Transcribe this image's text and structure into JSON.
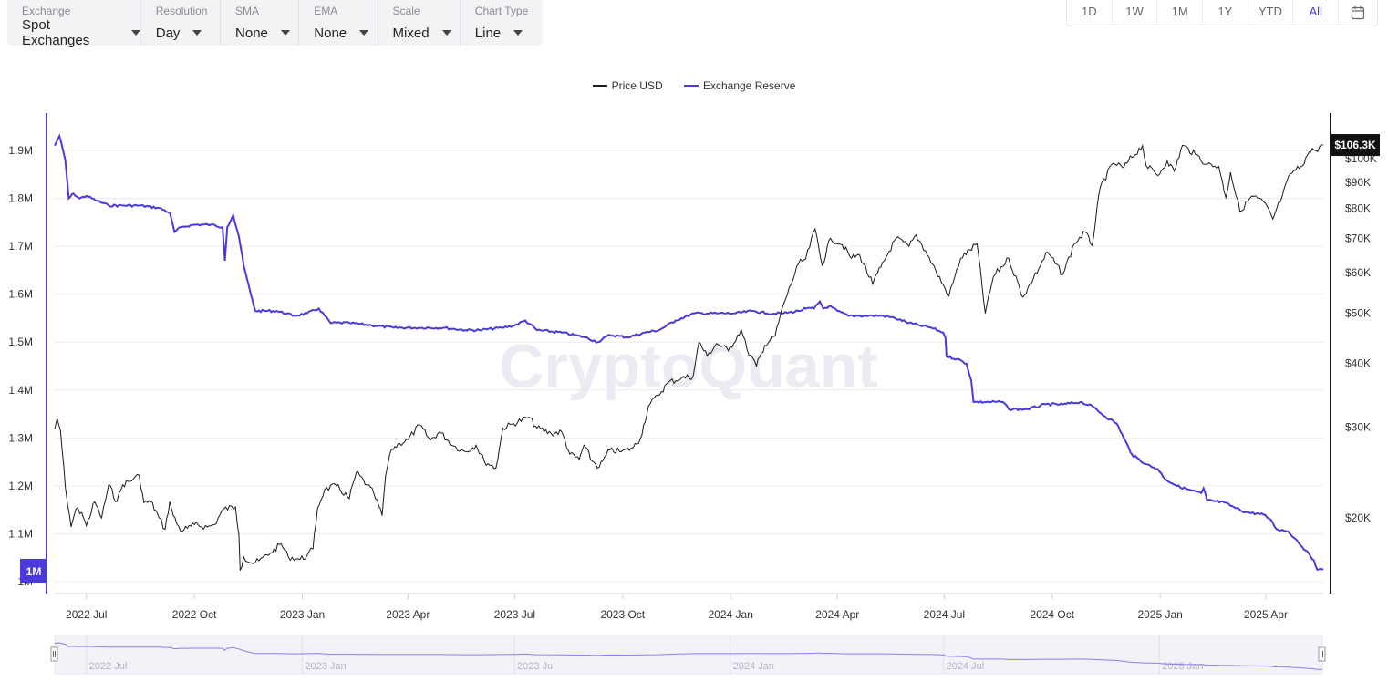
{
  "controls": [
    {
      "label": "Exchange",
      "value": "Spot Exchanges"
    },
    {
      "label": "Resolution",
      "value": "Day"
    },
    {
      "label": "SMA",
      "value": "None"
    },
    {
      "label": "EMA",
      "value": "None"
    },
    {
      "label": "Scale",
      "value": "Mixed"
    },
    {
      "label": "Chart Type",
      "value": "Line"
    }
  ],
  "range_buttons": [
    "1D",
    "1W",
    "1M",
    "1Y",
    "YTD",
    "All"
  ],
  "active_range": "All",
  "watermark": "CryptoQuant",
  "colors": {
    "reserve": "#4a3ad9",
    "price": "#1a1a1a",
    "accent": "#4a3ad9",
    "price_tag_bg": "#111111"
  },
  "chart_data": {
    "type": "line",
    "legend": [
      "Price USD",
      "Exchange Reserve"
    ],
    "legend_position": "top-center",
    "x_ticks": [
      "2022 Jul",
      "2022 Oct",
      "2023 Jan",
      "2023 Apr",
      "2023 Jul",
      "2023 Oct",
      "2024 Jan",
      "2024 Apr",
      "2024 Jul",
      "2024 Oct",
      "2025 Jan",
      "2025 Apr"
    ],
    "x_range": [
      "2022-06-04",
      "2025-05-20"
    ],
    "left_axis": {
      "ticks": [
        1.0,
        1.1,
        1.2,
        1.3,
        1.4,
        1.5,
        1.6,
        1.7,
        1.8,
        1.9
      ],
      "tick_labels": [
        "1M",
        "1.1M",
        "1.2M",
        "1.3M",
        "1.4M",
        "1.5M",
        "1.6M",
        "1.7M",
        "1.8M",
        "1.9M"
      ],
      "range": [
        0.998,
        1.9
      ],
      "unit": "M",
      "current_label": "1M"
    },
    "right_axis": {
      "scale": "log",
      "ticks": [
        20,
        30,
        40,
        50,
        60,
        70,
        80,
        90,
        100
      ],
      "tick_labels": [
        "$20K",
        "$30K",
        "$40K",
        "$50K",
        "$60K",
        "$70K",
        "$80K",
        "$90K",
        "$100K"
      ],
      "range": [
        16,
        110
      ],
      "current_label": "$106.3K"
    },
    "grid": true,
    "series": [
      {
        "name": "Exchange Reserve",
        "axis": "left",
        "points": [
          [
            "2022-06-04",
            1.91
          ],
          [
            "2022-06-08",
            1.93
          ],
          [
            "2022-06-13",
            1.88
          ],
          [
            "2022-06-16",
            1.8
          ],
          [
            "2022-06-20",
            1.81
          ],
          [
            "2022-06-25",
            1.8
          ],
          [
            "2022-07-01",
            1.805
          ],
          [
            "2022-07-10",
            1.795
          ],
          [
            "2022-07-20",
            1.785
          ],
          [
            "2022-08-01",
            1.785
          ],
          [
            "2022-08-15",
            1.785
          ],
          [
            "2022-09-01",
            1.78
          ],
          [
            "2022-09-10",
            1.77
          ],
          [
            "2022-09-14",
            1.73
          ],
          [
            "2022-09-20",
            1.74
          ],
          [
            "2022-10-01",
            1.745
          ],
          [
            "2022-10-15",
            1.745
          ],
          [
            "2022-10-25",
            1.74
          ],
          [
            "2022-10-27",
            1.67
          ],
          [
            "2022-10-29",
            1.74
          ],
          [
            "2022-11-03",
            1.765
          ],
          [
            "2022-11-08",
            1.72
          ],
          [
            "2022-11-12",
            1.66
          ],
          [
            "2022-11-18",
            1.6
          ],
          [
            "2022-11-22",
            1.565
          ],
          [
            "2022-12-10",
            1.565
          ],
          [
            "2022-12-25",
            1.555
          ],
          [
            "2023-01-05",
            1.56
          ],
          [
            "2023-01-15",
            1.57
          ],
          [
            "2023-01-25",
            1.54
          ],
          [
            "2023-02-10",
            1.54
          ],
          [
            "2023-03-01",
            1.535
          ],
          [
            "2023-03-20",
            1.53
          ],
          [
            "2023-04-10",
            1.53
          ],
          [
            "2023-05-01",
            1.53
          ],
          [
            "2023-05-20",
            1.525
          ],
          [
            "2023-06-01",
            1.525
          ],
          [
            "2023-06-20",
            1.53
          ],
          [
            "2023-07-01",
            1.535
          ],
          [
            "2023-07-10",
            1.545
          ],
          [
            "2023-07-20",
            1.525
          ],
          [
            "2023-08-10",
            1.52
          ],
          [
            "2023-08-30",
            1.51
          ],
          [
            "2023-09-10",
            1.5
          ],
          [
            "2023-09-20",
            1.515
          ],
          [
            "2023-10-05",
            1.51
          ],
          [
            "2023-10-20",
            1.52
          ],
          [
            "2023-11-01",
            1.525
          ],
          [
            "2023-11-15",
            1.545
          ],
          [
            "2023-12-01",
            1.56
          ],
          [
            "2023-12-20",
            1.56
          ],
          [
            "2024-01-05",
            1.56
          ],
          [
            "2024-01-20",
            1.565
          ],
          [
            "2024-02-01",
            1.56
          ],
          [
            "2024-02-15",
            1.56
          ],
          [
            "2024-02-28",
            1.565
          ],
          [
            "2024-03-05",
            1.57
          ],
          [
            "2024-03-12",
            1.57
          ],
          [
            "2024-03-17",
            1.585
          ],
          [
            "2024-03-20",
            1.57
          ],
          [
            "2024-03-25",
            1.575
          ],
          [
            "2024-04-01",
            1.565
          ],
          [
            "2024-04-10",
            1.555
          ],
          [
            "2024-04-20",
            1.555
          ],
          [
            "2024-05-01",
            1.555
          ],
          [
            "2024-05-10",
            1.555
          ],
          [
            "2024-05-20",
            1.55
          ],
          [
            "2024-06-01",
            1.54
          ],
          [
            "2024-06-10",
            1.535
          ],
          [
            "2024-06-20",
            1.53
          ],
          [
            "2024-06-30",
            1.52
          ],
          [
            "2024-07-02",
            1.51
          ],
          [
            "2024-07-03",
            1.47
          ],
          [
            "2024-07-12",
            1.465
          ],
          [
            "2024-07-20",
            1.455
          ],
          [
            "2024-07-24",
            1.42
          ],
          [
            "2024-07-26",
            1.375
          ],
          [
            "2024-08-10",
            1.375
          ],
          [
            "2024-08-20",
            1.375
          ],
          [
            "2024-08-25",
            1.36
          ],
          [
            "2024-09-10",
            1.36
          ],
          [
            "2024-09-25",
            1.37
          ],
          [
            "2024-10-10",
            1.37
          ],
          [
            "2024-10-25",
            1.375
          ],
          [
            "2024-11-05",
            1.365
          ],
          [
            "2024-11-15",
            1.345
          ],
          [
            "2024-11-25",
            1.33
          ],
          [
            "2024-12-01",
            1.3
          ],
          [
            "2024-12-08",
            1.265
          ],
          [
            "2024-12-20",
            1.245
          ],
          [
            "2024-12-30",
            1.235
          ],
          [
            "2025-01-05",
            1.215
          ],
          [
            "2025-01-15",
            1.2
          ],
          [
            "2025-01-28",
            1.19
          ],
          [
            "2025-02-05",
            1.185
          ],
          [
            "2025-02-07",
            1.195
          ],
          [
            "2025-02-10",
            1.17
          ],
          [
            "2025-02-25",
            1.165
          ],
          [
            "2025-03-05",
            1.155
          ],
          [
            "2025-03-15",
            1.145
          ],
          [
            "2025-03-30",
            1.14
          ],
          [
            "2025-04-05",
            1.13
          ],
          [
            "2025-04-10",
            1.11
          ],
          [
            "2025-04-20",
            1.105
          ],
          [
            "2025-04-28",
            1.085
          ],
          [
            "2025-05-05",
            1.065
          ],
          [
            "2025-05-12",
            1.045
          ],
          [
            "2025-05-15",
            1.025
          ],
          [
            "2025-05-20",
            1.025
          ]
        ]
      },
      {
        "name": "Price USD",
        "axis": "right",
        "points": [
          [
            "2022-06-04",
            29.8
          ],
          [
            "2022-06-06",
            31.2
          ],
          [
            "2022-06-09",
            29.5
          ],
          [
            "2022-06-13",
            23.0
          ],
          [
            "2022-06-15",
            21.2
          ],
          [
            "2022-06-18",
            19.2
          ],
          [
            "2022-06-22",
            20.8
          ],
          [
            "2022-06-27",
            20.5
          ],
          [
            "2022-07-01",
            19.3
          ],
          [
            "2022-07-08",
            21.5
          ],
          [
            "2022-07-14",
            20.0
          ],
          [
            "2022-07-20",
            23.2
          ],
          [
            "2022-07-27",
            21.5
          ],
          [
            "2022-08-01",
            23.2
          ],
          [
            "2022-08-10",
            23.8
          ],
          [
            "2022-08-15",
            24.2
          ],
          [
            "2022-08-19",
            21.4
          ],
          [
            "2022-08-25",
            21.5
          ],
          [
            "2022-09-01",
            20.0
          ],
          [
            "2022-09-06",
            19.0
          ],
          [
            "2022-09-10",
            21.5
          ],
          [
            "2022-09-13",
            20.2
          ],
          [
            "2022-09-19",
            18.9
          ],
          [
            "2022-09-25",
            19.1
          ],
          [
            "2022-10-01",
            19.4
          ],
          [
            "2022-10-12",
            19.2
          ],
          [
            "2022-10-18",
            19.4
          ],
          [
            "2022-10-26",
            20.8
          ],
          [
            "2022-11-05",
            21.0
          ],
          [
            "2022-11-08",
            18.5
          ],
          [
            "2022-11-09",
            15.8
          ],
          [
            "2022-11-12",
            16.8
          ],
          [
            "2022-11-20",
            16.3
          ],
          [
            "2022-11-25",
            16.5
          ],
          [
            "2022-12-05",
            17.1
          ],
          [
            "2022-12-14",
            17.8
          ],
          [
            "2022-12-20",
            16.8
          ],
          [
            "2022-12-30",
            16.6
          ],
          [
            "2023-01-05",
            16.9
          ],
          [
            "2023-01-10",
            17.4
          ],
          [
            "2023-01-14",
            20.9
          ],
          [
            "2023-01-20",
            22.7
          ],
          [
            "2023-01-30",
            23.1
          ],
          [
            "2023-02-10",
            21.8
          ],
          [
            "2023-02-16",
            24.5
          ],
          [
            "2023-02-25",
            23.2
          ],
          [
            "2023-03-03",
            22.3
          ],
          [
            "2023-03-10",
            20.2
          ],
          [
            "2023-03-13",
            24.2
          ],
          [
            "2023-03-18",
            27.2
          ],
          [
            "2023-03-25",
            27.9
          ],
          [
            "2023-04-01",
            28.4
          ],
          [
            "2023-04-11",
            30.3
          ],
          [
            "2023-04-20",
            28.3
          ],
          [
            "2023-04-28",
            29.4
          ],
          [
            "2023-05-10",
            27.6
          ],
          [
            "2023-05-20",
            26.9
          ],
          [
            "2023-05-29",
            27.7
          ],
          [
            "2023-06-05",
            25.8
          ],
          [
            "2023-06-15",
            25.0
          ],
          [
            "2023-06-21",
            29.9
          ],
          [
            "2023-06-30",
            30.5
          ],
          [
            "2023-07-13",
            31.4
          ],
          [
            "2023-07-20",
            29.9
          ],
          [
            "2023-08-01",
            29.2
          ],
          [
            "2023-08-10",
            29.4
          ],
          [
            "2023-08-17",
            26.6
          ],
          [
            "2023-08-25",
            26.0
          ],
          [
            "2023-08-29",
            27.7
          ],
          [
            "2023-09-05",
            25.8
          ],
          [
            "2023-09-11",
            25.1
          ],
          [
            "2023-09-20",
            27.1
          ],
          [
            "2023-09-30",
            26.9
          ],
          [
            "2023-10-10",
            27.4
          ],
          [
            "2023-10-16",
            28.5
          ],
          [
            "2023-10-23",
            33.0
          ],
          [
            "2023-10-31",
            34.6
          ],
          [
            "2023-11-09",
            36.7
          ],
          [
            "2023-11-20",
            37.4
          ],
          [
            "2023-11-30",
            37.7
          ],
          [
            "2023-12-05",
            44.0
          ],
          [
            "2023-12-12",
            41.3
          ],
          [
            "2023-12-20",
            43.7
          ],
          [
            "2023-12-30",
            42.3
          ],
          [
            "2024-01-10",
            46.5
          ],
          [
            "2024-01-15",
            42.5
          ],
          [
            "2024-01-23",
            39.5
          ],
          [
            "2024-01-30",
            43.3
          ],
          [
            "2024-02-08",
            45.3
          ],
          [
            "2024-02-15",
            52.0
          ],
          [
            "2024-02-28",
            62.5
          ],
          [
            "2024-03-05",
            63.8
          ],
          [
            "2024-03-13",
            73.0
          ],
          [
            "2024-03-19",
            62.0
          ],
          [
            "2024-03-26",
            70.0
          ],
          [
            "2024-04-05",
            68.0
          ],
          [
            "2024-04-13",
            64.0
          ],
          [
            "2024-04-20",
            64.9
          ],
          [
            "2024-05-01",
            57.0
          ],
          [
            "2024-05-08",
            61.5
          ],
          [
            "2024-05-15",
            66.0
          ],
          [
            "2024-05-21",
            70.0
          ],
          [
            "2024-06-01",
            67.5
          ],
          [
            "2024-06-07",
            71.0
          ],
          [
            "2024-06-15",
            66.2
          ],
          [
            "2024-06-24",
            60.4
          ],
          [
            "2024-07-05",
            54.0
          ],
          [
            "2024-07-15",
            64.0
          ],
          [
            "2024-07-29",
            68.3
          ],
          [
            "2024-08-05",
            50.0
          ],
          [
            "2024-08-12",
            59.0
          ],
          [
            "2024-08-25",
            64.0
          ],
          [
            "2024-09-06",
            53.8
          ],
          [
            "2024-09-15",
            58.5
          ],
          [
            "2024-09-27",
            65.8
          ],
          [
            "2024-10-10",
            59.5
          ],
          [
            "2024-10-20",
            68.4
          ],
          [
            "2024-10-29",
            72.0
          ],
          [
            "2024-11-04",
            67.8
          ],
          [
            "2024-11-11",
            88.0
          ],
          [
            "2024-11-22",
            98.0
          ],
          [
            "2024-12-01",
            96.0
          ],
          [
            "2024-12-05",
            99.0
          ],
          [
            "2024-12-17",
            106.0
          ],
          [
            "2024-12-20",
            97.0
          ],
          [
            "2024-12-30",
            92.7
          ],
          [
            "2025-01-07",
            99.0
          ],
          [
            "2025-01-13",
            94.5
          ],
          [
            "2025-01-20",
            106.2
          ],
          [
            "2025-01-31",
            102.0
          ],
          [
            "2025-02-10",
            97.5
          ],
          [
            "2025-02-20",
            96.5
          ],
          [
            "2025-02-26",
            84.0
          ],
          [
            "2025-03-02",
            94.0
          ],
          [
            "2025-03-10",
            79.0
          ],
          [
            "2025-03-20",
            84.5
          ],
          [
            "2025-03-30",
            82.5
          ],
          [
            "2025-04-07",
            76.3
          ],
          [
            "2025-04-15",
            84.5
          ],
          [
            "2025-04-22",
            93.5
          ],
          [
            "2025-05-01",
            96.5
          ],
          [
            "2025-05-08",
            103.0
          ],
          [
            "2025-05-12",
            104.0
          ],
          [
            "2025-05-14",
            103.5
          ],
          [
            "2025-05-18",
            106.3
          ],
          [
            "2025-05-20",
            106.3
          ]
        ]
      }
    ]
  }
}
